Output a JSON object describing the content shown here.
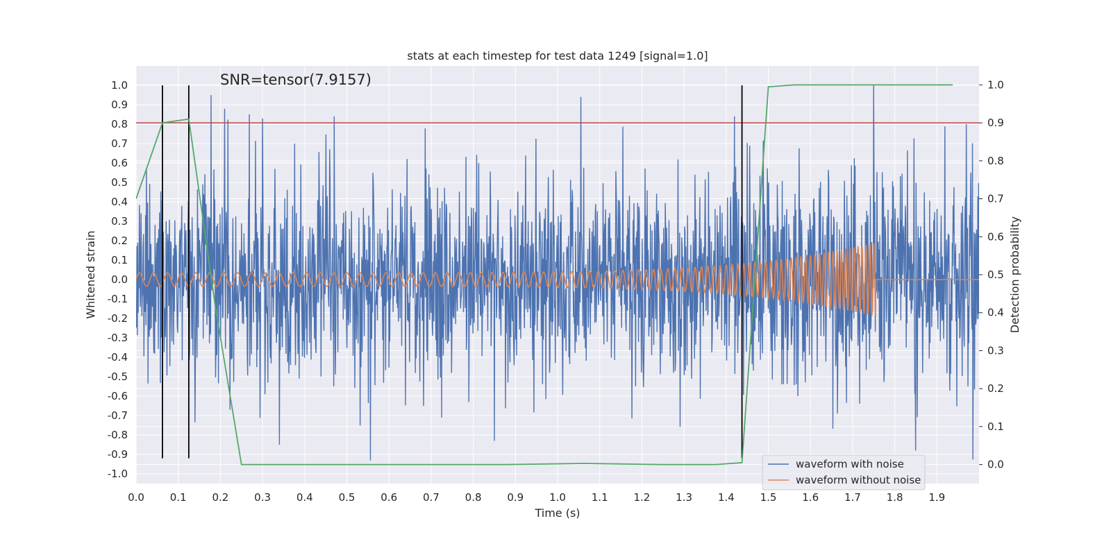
{
  "chart_data": {
    "type": "line",
    "title": "stats at each timestep for test data 1249 [signal=1.0]",
    "xlabel": "Time (s)",
    "ylabel_left": "Whitened strain",
    "ylabel_right": "Detection probability",
    "annotation": "SNR=tensor(7.9157)",
    "xlim": [
      0.0,
      2.0
    ],
    "ylim_left": [
      -1.05,
      1.1
    ],
    "ylim_right": [
      -0.05,
      1.05
    ],
    "x_ticks": [
      "0.0",
      "0.1",
      "0.2",
      "0.3",
      "0.4",
      "0.5",
      "0.6",
      "0.7",
      "0.8",
      "0.9",
      "1.0",
      "1.1",
      "1.2",
      "1.3",
      "1.4",
      "1.5",
      "1.6",
      "1.7",
      "1.8",
      "1.9"
    ],
    "y_left_ticks": [
      "1.0",
      "0.9",
      "0.8",
      "0.7",
      "0.6",
      "0.5",
      "0.4",
      "0.3",
      "0.2",
      "0.1",
      "0.0",
      "-0.1",
      "-0.2",
      "-0.3",
      "-0.4",
      "-0.5",
      "-0.6",
      "-0.7",
      "-0.8",
      "-0.9",
      "-1.0"
    ],
    "y_right_ticks": [
      "1.0",
      "0.9",
      "0.8",
      "0.7",
      "0.6",
      "0.5",
      "0.4",
      "0.3",
      "0.2",
      "0.1",
      "0.0"
    ],
    "threshold": {
      "axis": "right",
      "value": 0.9,
      "color": "#c44e52"
    },
    "detections_x": [
      0.0625,
      0.125,
      1.4375
    ],
    "detection_line_range": [
      -0.92,
      1.0
    ],
    "series": [
      {
        "name": "waveform with noise",
        "axis": "left",
        "color": "#4c72b0",
        "kind": "noise",
        "std": 0.27,
        "x_range": [
          0.0,
          2.0
        ],
        "points": 2048,
        "seed": 1249,
        "spikes": [
          {
            "x": 0.21,
            "y": 0.88
          },
          {
            "x": 0.3,
            "y": 0.83
          },
          {
            "x": 0.47,
            "y": 0.84
          },
          {
            "x": 1.055,
            "y": 0.94
          },
          {
            "x": 1.42,
            "y": 0.84
          },
          {
            "x": 1.75,
            "y": 1.0
          },
          {
            "x": 1.97,
            "y": 0.8
          },
          {
            "x": 0.34,
            "y": -0.85
          },
          {
            "x": 0.85,
            "y": -0.83
          },
          {
            "x": 1.85,
            "y": -0.88
          },
          {
            "x": 1.57,
            "y": -0.6
          }
        ]
      },
      {
        "name": "waveform without noise",
        "axis": "left",
        "color": "#dd8452",
        "kind": "chirp",
        "t_merge": 1.755,
        "amp_start": 0.035,
        "amp_peak": 0.19,
        "freq_start": 30,
        "freq_end": 110
      },
      {
        "name": "detection probability",
        "axis": "right",
        "color": "#55a868",
        "kind": "line",
        "x": [
          0.0,
          0.0625,
          0.125,
          0.1875,
          0.25,
          0.3125,
          0.375,
          0.4375,
          0.5,
          0.5625,
          0.625,
          0.6875,
          0.75,
          0.8125,
          0.875,
          0.9375,
          1.0,
          1.0625,
          1.125,
          1.1875,
          1.25,
          1.3125,
          1.375,
          1.4375,
          1.5,
          1.5625,
          1.625,
          1.6875,
          1.75,
          1.8125,
          1.875,
          1.9375
        ],
        "values": [
          0.7,
          0.9,
          0.91,
          0.42,
          0.0,
          0.0,
          0.0,
          0.0,
          0.0,
          0.0,
          0.0,
          0.0,
          0.0,
          0.0,
          0.0,
          0.001,
          0.002,
          0.003,
          0.002,
          0.001,
          0.0,
          0.0,
          0.0,
          0.005,
          0.995,
          1.0,
          1.0,
          1.0,
          1.0,
          1.0,
          1.0,
          1.0
        ]
      }
    ],
    "legend": {
      "placement": "lower-right",
      "entries": [
        "waveform with noise",
        "waveform without noise"
      ]
    }
  },
  "style": {
    "figure_background": "#ffffff",
    "axes_background": "#eaeaf2",
    "grid_color": "#ffffff",
    "detection_line_color": "#000000"
  }
}
